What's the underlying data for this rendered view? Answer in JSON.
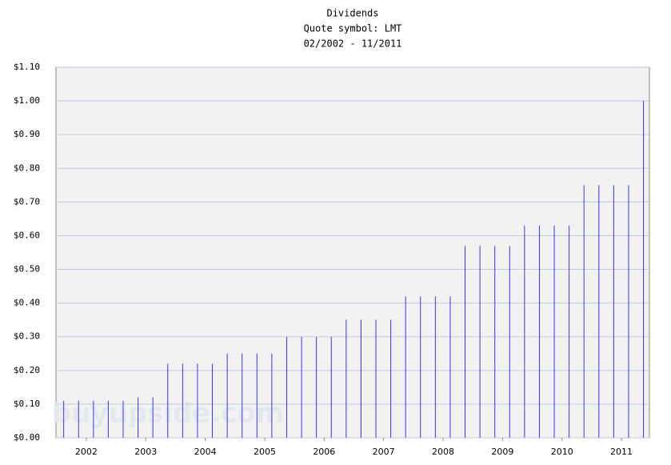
{
  "chart_data": {
    "type": "bar",
    "title": "Dividends",
    "subtitle": [
      "Quote symbol: LMT",
      "02/2002 - 11/2011"
    ],
    "watermark": "buyupside.com",
    "x": [
      2002.12,
      2002.37,
      2002.62,
      2002.87,
      2003.12,
      2003.37,
      2003.62,
      2003.87,
      2004.12,
      2004.37,
      2004.62,
      2004.87,
      2005.12,
      2005.37,
      2005.62,
      2005.87,
      2006.12,
      2006.37,
      2006.62,
      2006.87,
      2007.12,
      2007.37,
      2007.62,
      2007.87,
      2008.12,
      2008.37,
      2008.62,
      2008.87,
      2009.12,
      2009.37,
      2009.62,
      2009.87,
      2010.12,
      2010.37,
      2010.62,
      2010.87,
      2011.12,
      2011.37,
      2011.62,
      2011.87
    ],
    "values": [
      0.11,
      0.11,
      0.11,
      0.11,
      0.11,
      0.12,
      0.12,
      0.22,
      0.22,
      0.22,
      0.22,
      0.25,
      0.25,
      0.25,
      0.25,
      0.3,
      0.3,
      0.3,
      0.3,
      0.35,
      0.35,
      0.35,
      0.35,
      0.42,
      0.42,
      0.42,
      0.42,
      0.57,
      0.57,
      0.57,
      0.57,
      0.63,
      0.63,
      0.63,
      0.63,
      0.75,
      0.75,
      0.75,
      0.75,
      1.0
    ],
    "color": "#3333ff",
    "xlim": [
      2001.99,
      2011.97
    ],
    "xticks": [
      {
        "value": 2002.5,
        "label": "2002"
      },
      {
        "value": 2003.5,
        "label": "2003"
      },
      {
        "value": 2004.5,
        "label": "2004"
      },
      {
        "value": 2005.5,
        "label": "2005"
      },
      {
        "value": 2006.5,
        "label": "2006"
      },
      {
        "value": 2007.5,
        "label": "2007"
      },
      {
        "value": 2008.5,
        "label": "2008"
      },
      {
        "value": 2009.5,
        "label": "2009"
      },
      {
        "value": 2010.5,
        "label": "2010"
      },
      {
        "value": 2011.5,
        "label": "2011"
      }
    ],
    "ylim": [
      0,
      1.1
    ],
    "yticks": [
      {
        "value": 0,
        "label": "$0.00"
      },
      {
        "value": 0.1,
        "label": "$0.10"
      },
      {
        "value": 0.2,
        "label": "$0.20"
      },
      {
        "value": 0.3,
        "label": "$0.30"
      },
      {
        "value": 0.4,
        "label": "$0.40"
      },
      {
        "value": 0.5,
        "label": "$0.50"
      },
      {
        "value": 0.6,
        "label": "$0.60"
      },
      {
        "value": 0.7,
        "label": "$0.70"
      },
      {
        "value": 0.8,
        "label": "$0.80"
      },
      {
        "value": 0.9,
        "label": "$0.90"
      },
      {
        "value": 1.0,
        "label": "$1.00"
      },
      {
        "value": 1.1,
        "label": "$1.10"
      }
    ],
    "grid": true
  }
}
